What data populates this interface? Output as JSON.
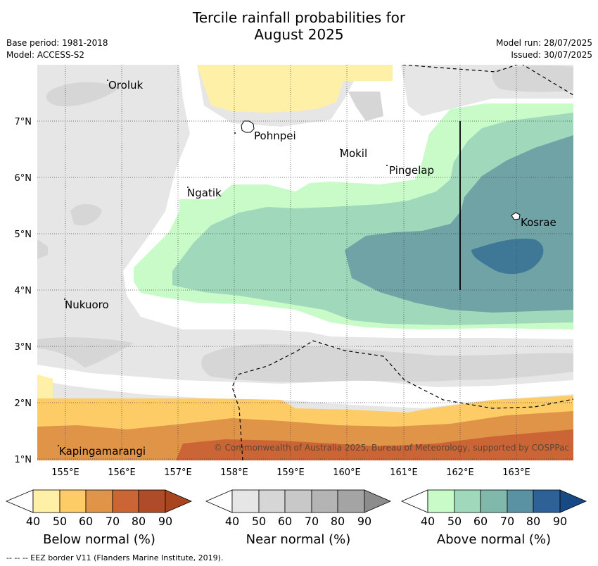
{
  "title_line1": "Tercile rainfall probabilities for",
  "title_line2": "August 2025",
  "meta_left": [
    "Base period: 1981-2018",
    "Model: ACCESS-S2"
  ],
  "meta_right": [
    "Model run: 28/07/2025",
    "Issued: 30/07/2025"
  ],
  "lon_ticks": [
    "155°E",
    "156°E",
    "157°E",
    "158°E",
    "159°E",
    "160°E",
    "161°E",
    "162°E",
    "163°E"
  ],
  "lat_ticks": [
    "7°N",
    "6°N",
    "5°N",
    "4°N",
    "3°N",
    "2°N",
    "1°N"
  ],
  "places": [
    "Oroluk",
    "Pohnpei",
    "Mokil",
    "Pingelap",
    "Ngatik",
    "Kosrae",
    "Nukuoro",
    "Kapingamarangi"
  ],
  "copyright": "© Commonwealth of Australia 2025, Bureau of Meteorology, supported by COSPPac",
  "colorbars": [
    {
      "label": "Below normal (%)",
      "ticks": [
        "40",
        "50",
        "60",
        "70",
        "80",
        "90"
      ],
      "colors": [
        "#fff0a8",
        "#fdcc66",
        "#e09448",
        "#cc6535",
        "#b04b2a",
        "#a8441e"
      ]
    },
    {
      "label": "Near normal (%)",
      "ticks": [
        "40",
        "50",
        "60",
        "70",
        "80",
        "90"
      ],
      "colors": [
        "#e6e6e6",
        "#d6d6d6",
        "#c8c8c8",
        "#b4b4b4",
        "#a4a4a4",
        "#8c8c8c"
      ]
    },
    {
      "label": "Above normal (%)",
      "ticks": [
        "40",
        "50",
        "60",
        "70",
        "80",
        "90"
      ],
      "colors": [
        "#c8fbc8",
        "#a0d8bc",
        "#80b8ac",
        "#5a92a4",
        "#2e6296",
        "#174a84"
      ]
    }
  ],
  "footer": "--  --  -- EEZ border V11 (Flanders Marine Institute, 2019)."
}
